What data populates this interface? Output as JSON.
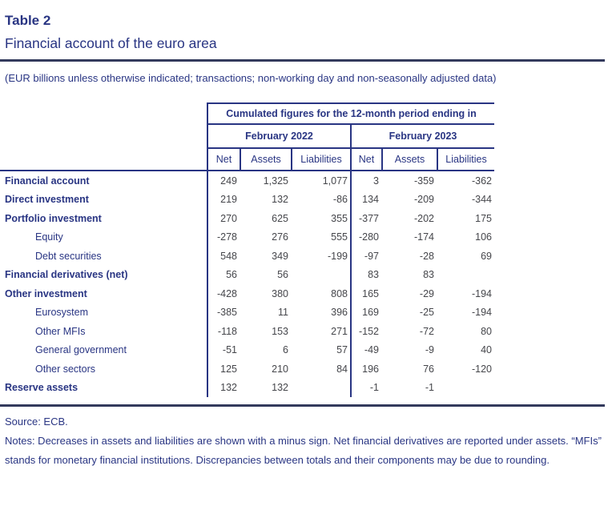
{
  "header": {
    "table_label": "Table 2",
    "title": "Financial account of the euro area",
    "subtitle": "(EUR billions unless otherwise indicated; transactions; non-working day and non-seasonally adjusted data)"
  },
  "table": {
    "span_header": "Cumulated figures for the 12-month period ending in",
    "groups": [
      {
        "label": "February 2022"
      },
      {
        "label": "February 2023"
      }
    ],
    "columns": [
      "Net",
      "Assets",
      "Liabilities",
      "Net",
      "Assets",
      "Liabilities"
    ],
    "rows": [
      {
        "label": "Financial account",
        "style": "main",
        "values": [
          "249",
          "1,325",
          "1,077",
          "3",
          "-359",
          "-362"
        ]
      },
      {
        "label": "Direct investment",
        "style": "main",
        "values": [
          "219",
          "132",
          "-86",
          "134",
          "-209",
          "-344"
        ]
      },
      {
        "label": "Portfolio investment",
        "style": "main",
        "values": [
          "270",
          "625",
          "355",
          "-377",
          "-202",
          "175"
        ]
      },
      {
        "label": "Equity",
        "style": "sub",
        "values": [
          "-278",
          "276",
          "555",
          "-280",
          "-174",
          "106"
        ]
      },
      {
        "label": "Debt securities",
        "style": "sub",
        "values": [
          "548",
          "349",
          "-199",
          "-97",
          "-28",
          "69"
        ]
      },
      {
        "label": "Financial derivatives (net)",
        "style": "main",
        "values": [
          "56",
          "56",
          "",
          "83",
          "83",
          ""
        ]
      },
      {
        "label": "Other investment",
        "style": "main",
        "values": [
          "-428",
          "380",
          "808",
          "165",
          "-29",
          "-194"
        ]
      },
      {
        "label": "Eurosystem",
        "style": "sub",
        "values": [
          "-385",
          "11",
          "396",
          "169",
          "-25",
          "-194"
        ]
      },
      {
        "label": "Other MFIs",
        "style": "sub",
        "values": [
          "-118",
          "153",
          "271",
          "-152",
          "-72",
          "80"
        ]
      },
      {
        "label": "General government",
        "style": "sub",
        "values": [
          "-51",
          "6",
          "57",
          "-49",
          "-9",
          "40"
        ]
      },
      {
        "label": "Other sectors",
        "style": "sub",
        "values": [
          "125",
          "210",
          "84",
          "196",
          "76",
          "-120"
        ]
      },
      {
        "label": "Reserve assets",
        "style": "main",
        "values": [
          "132",
          "132",
          "",
          "-1",
          "-1",
          ""
        ]
      }
    ]
  },
  "footer": {
    "source": "Source: ECB.",
    "notes": "Notes: Decreases in assets and liabilities are shown with a minus sign. Net financial derivatives are reported under assets. “MFIs” stands for monetary financial institutions. Discrepancies between totals and their components may be due to rounding."
  },
  "colors": {
    "accent_navy": "#293583",
    "number_gray": "#45464b",
    "rule_dark": "#333a5c"
  }
}
